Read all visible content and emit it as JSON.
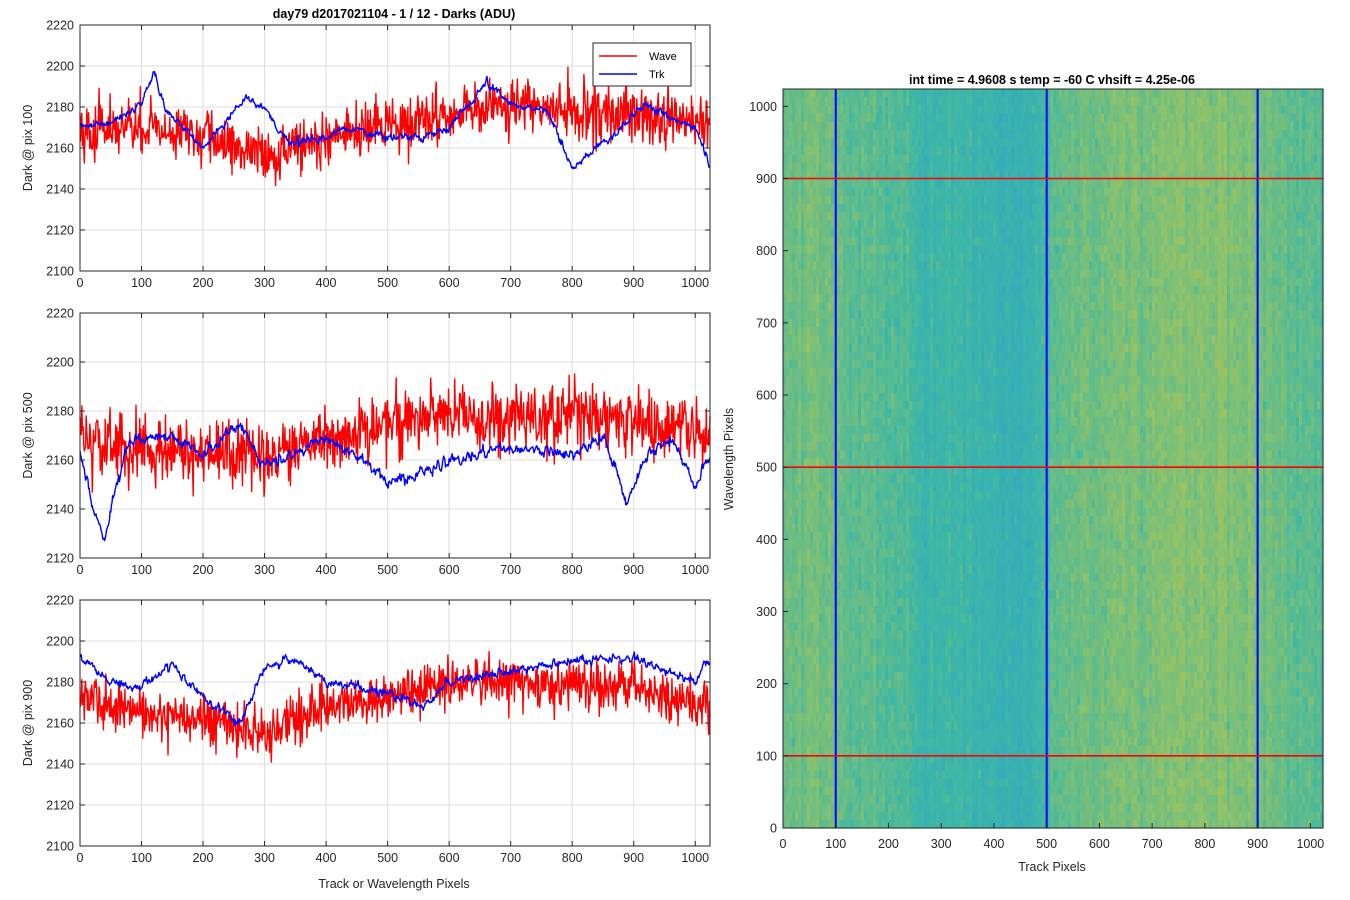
{
  "figure_title": "day79 d2017021104 - 1 / 12 - Darks (ADU)",
  "colors": {
    "wave": "#ff0000",
    "trk": "#0000ff",
    "grid": "#dcdcdc",
    "axis": "#262626"
  },
  "chart_data": [
    {
      "type": "line",
      "ylabel": "Dark @ pix 100",
      "xlabel": "",
      "xlim": [
        0,
        1024
      ],
      "ylim": [
        2100,
        2220
      ],
      "xticks": [
        0,
        100,
        200,
        300,
        400,
        500,
        600,
        700,
        800,
        900,
        1000
      ],
      "yticks": [
        2100,
        2120,
        2140,
        2160,
        2180,
        2200,
        2220
      ],
      "grid": true,
      "legend": {
        "placement": "top-right"
      },
      "series": [
        {
          "name": "Wave",
          "color": "#ff0000",
          "noise": 11,
          "baseline": [
            [
              0,
              2168
            ],
            [
              100,
              2170
            ],
            [
              200,
              2165
            ],
            [
              300,
              2157
            ],
            [
              400,
              2165
            ],
            [
              500,
              2170
            ],
            [
              600,
              2176
            ],
            [
              700,
              2180
            ],
            [
              800,
              2179
            ],
            [
              900,
              2175
            ],
            [
              1000,
              2172
            ],
            [
              1024,
              2170
            ]
          ]
        },
        {
          "name": "Trk",
          "color": "#0000ff",
          "noise": 3.5,
          "baseline": [
            [
              0,
              2170
            ],
            [
              50,
              2172
            ],
            [
              100,
              2182
            ],
            [
              120,
              2197
            ],
            [
              140,
              2178
            ],
            [
              200,
              2160
            ],
            [
              270,
              2185
            ],
            [
              300,
              2180
            ],
            [
              340,
              2162
            ],
            [
              400,
              2165
            ],
            [
              430,
              2170
            ],
            [
              460,
              2168
            ],
            [
              500,
              2166
            ],
            [
              560,
              2165
            ],
            [
              600,
              2170
            ],
            [
              660,
              2192
            ],
            [
              700,
              2182
            ],
            [
              760,
              2178
            ],
            [
              800,
              2150
            ],
            [
              840,
              2160
            ],
            [
              880,
              2170
            ],
            [
              920,
              2182
            ],
            [
              960,
              2175
            ],
            [
              1000,
              2170
            ],
            [
              1024,
              2152
            ]
          ]
        }
      ]
    },
    {
      "type": "line",
      "ylabel": "Dark @ pix 500",
      "xlabel": "",
      "xlim": [
        0,
        1024
      ],
      "ylim": [
        2120,
        2220
      ],
      "xticks": [
        0,
        100,
        200,
        300,
        400,
        500,
        600,
        700,
        800,
        900,
        1000
      ],
      "yticks": [
        2120,
        2140,
        2160,
        2180,
        2200,
        2220
      ],
      "grid": true,
      "series": [
        {
          "name": "Wave",
          "color": "#ff0000",
          "noise": 11,
          "baseline": [
            [
              0,
              2168
            ],
            [
              100,
              2165
            ],
            [
              200,
              2163
            ],
            [
              300,
              2160
            ],
            [
              400,
              2168
            ],
            [
              500,
              2175
            ],
            [
              600,
              2178
            ],
            [
              700,
              2176
            ],
            [
              800,
              2180
            ],
            [
              900,
              2175
            ],
            [
              1000,
              2170
            ],
            [
              1024,
              2170
            ]
          ]
        },
        {
          "name": "Trk",
          "color": "#0000ff",
          "noise": 4,
          "baseline": [
            [
              0,
              2165
            ],
            [
              20,
              2140
            ],
            [
              40,
              2128
            ],
            [
              60,
              2150
            ],
            [
              80,
              2168
            ],
            [
              150,
              2170
            ],
            [
              200,
              2162
            ],
            [
              260,
              2175
            ],
            [
              300,
              2158
            ],
            [
              400,
              2168
            ],
            [
              460,
              2160
            ],
            [
              500,
              2150
            ],
            [
              560,
              2155
            ],
            [
              600,
              2160
            ],
            [
              700,
              2165
            ],
            [
              800,
              2162
            ],
            [
              850,
              2170
            ],
            [
              890,
              2142
            ],
            [
              920,
              2162
            ],
            [
              960,
              2168
            ],
            [
              1000,
              2150
            ],
            [
              1024,
              2162
            ]
          ]
        }
      ]
    },
    {
      "type": "line",
      "ylabel": "Dark @ pix 900",
      "xlabel": "Track or Wavelength Pixels",
      "xlim": [
        0,
        1024
      ],
      "ylim": [
        2100,
        2220
      ],
      "xticks": [
        0,
        100,
        200,
        300,
        400,
        500,
        600,
        700,
        800,
        900,
        1000
      ],
      "yticks": [
        2100,
        2120,
        2140,
        2160,
        2180,
        2200,
        2220
      ],
      "grid": true,
      "series": [
        {
          "name": "Wave",
          "color": "#ff0000",
          "noise": 10,
          "baseline": [
            [
              0,
              2172
            ],
            [
              100,
              2165
            ],
            [
              200,
              2162
            ],
            [
              300,
              2155
            ],
            [
              400,
              2168
            ],
            [
              500,
              2172
            ],
            [
              600,
              2180
            ],
            [
              700,
              2180
            ],
            [
              800,
              2178
            ],
            [
              900,
              2178
            ],
            [
              1000,
              2170
            ],
            [
              1024,
              2170
            ]
          ]
        },
        {
          "name": "Trk",
          "color": "#0000ff",
          "noise": 4,
          "baseline": [
            [
              0,
              2192
            ],
            [
              50,
              2180
            ],
            [
              100,
              2178
            ],
            [
              150,
              2188
            ],
            [
              200,
              2172
            ],
            [
              260,
              2160
            ],
            [
              300,
              2188
            ],
            [
              350,
              2190
            ],
            [
              400,
              2180
            ],
            [
              450,
              2178
            ],
            [
              500,
              2175
            ],
            [
              560,
              2168
            ],
            [
              600,
              2180
            ],
            [
              700,
              2185
            ],
            [
              800,
              2190
            ],
            [
              900,
              2192
            ],
            [
              1000,
              2180
            ],
            [
              1024,
              2192
            ]
          ]
        }
      ]
    },
    {
      "type": "heatmap",
      "title": "int time = 4.9608 s    temp = -60 C    vhsift = 4.25e-06",
      "xlabel": "Track Pixels",
      "ylabel": "Wavelength Pixels",
      "xlim": [
        0,
        1024
      ],
      "ylim": [
        0,
        1024
      ],
      "xticks": [
        0,
        100,
        200,
        300,
        400,
        500,
        600,
        700,
        800,
        900,
        1000
      ],
      "yticks": [
        0,
        100,
        200,
        300,
        400,
        500,
        600,
        700,
        800,
        900,
        1000
      ],
      "column_profile": [
        [
          0,
          0.5
        ],
        [
          60,
          0.55
        ],
        [
          120,
          0.48
        ],
        [
          200,
          0.42
        ],
        [
          300,
          0.3
        ],
        [
          380,
          0.25
        ],
        [
          450,
          0.2
        ],
        [
          500,
          0.35
        ],
        [
          520,
          0.5
        ],
        [
          600,
          0.55
        ],
        [
          700,
          0.6
        ],
        [
          800,
          0.65
        ],
        [
          870,
          0.6
        ],
        [
          950,
          0.5
        ],
        [
          1024,
          0.45
        ]
      ],
      "colormap": [
        "#2fa5c8",
        "#3db7a6",
        "#8ec26a",
        "#c9c04a"
      ],
      "overlay_lines": [
        {
          "orientation": "vertical",
          "value": 100,
          "color": "#0000ff"
        },
        {
          "orientation": "vertical",
          "value": 500,
          "color": "#0000ff"
        },
        {
          "orientation": "vertical",
          "value": 900,
          "color": "#0000ff"
        },
        {
          "orientation": "horizontal",
          "value": 100,
          "color": "#ff0000"
        },
        {
          "orientation": "horizontal",
          "value": 500,
          "color": "#ff0000"
        },
        {
          "orientation": "horizontal",
          "value": 900,
          "color": "#ff0000"
        }
      ]
    }
  ]
}
